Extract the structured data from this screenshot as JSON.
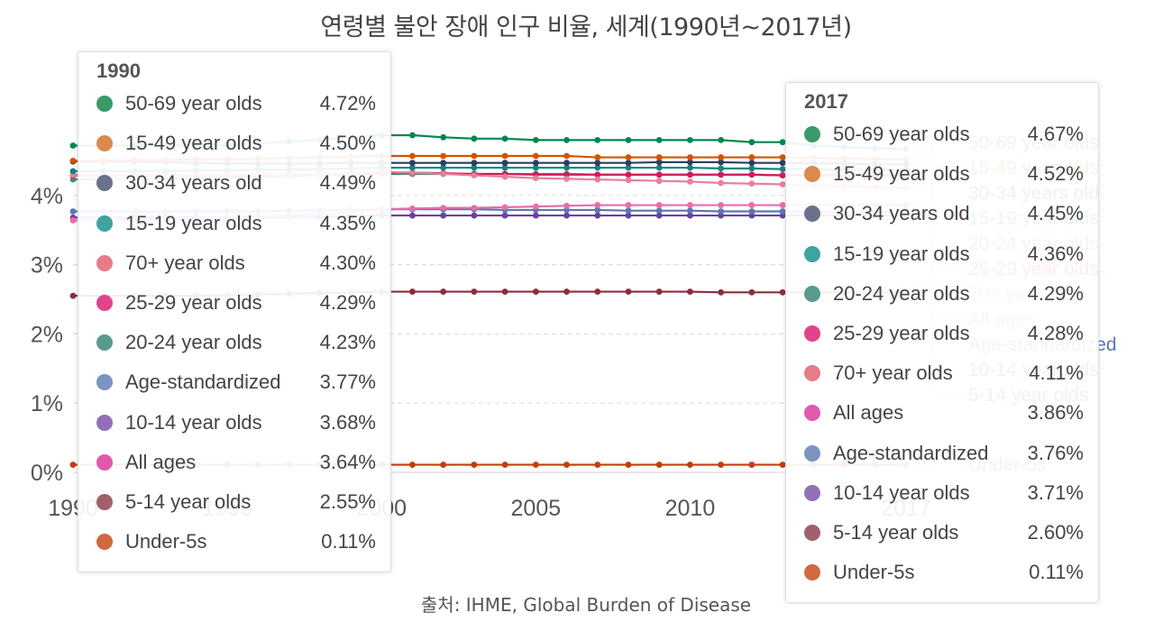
{
  "title": "연령별 불안 장애 인구 비율, 세계(1990년~2017년)",
  "source": "출처: IHME, Global Burden of Disease",
  "chart_data": {
    "type": "line",
    "x": [
      1990,
      1991,
      1992,
      1993,
      1994,
      1995,
      1996,
      1997,
      1998,
      1999,
      2000,
      2001,
      2002,
      2003,
      2004,
      2005,
      2006,
      2007,
      2008,
      2009,
      2010,
      2011,
      2012,
      2013,
      2014,
      2015,
      2016,
      2017
    ],
    "x_ticks": [
      1990,
      1995,
      2000,
      2005,
      2010,
      2017
    ],
    "y_ticks": [
      "0%",
      "1%",
      "2%",
      "3%",
      "4%"
    ],
    "ylim": [
      0,
      5
    ],
    "yunit": "%",
    "series": [
      {
        "name": "50-69 year olds",
        "color": "#00874d",
        "values": [
          4.72,
          4.72,
          4.72,
          4.72,
          4.72,
          4.73,
          4.75,
          4.78,
          4.8,
          4.84,
          4.87,
          4.87,
          4.84,
          4.82,
          4.82,
          4.8,
          4.8,
          4.8,
          4.8,
          4.8,
          4.8,
          4.8,
          4.77,
          4.77,
          4.72,
          4.7,
          4.68,
          4.67
        ]
      },
      {
        "name": "15-49 year olds",
        "color": "#d35400",
        "values": [
          4.5,
          4.5,
          4.51,
          4.51,
          4.52,
          4.52,
          4.53,
          4.54,
          4.55,
          4.56,
          4.57,
          4.57,
          4.57,
          4.57,
          4.57,
          4.57,
          4.57,
          4.55,
          4.55,
          4.55,
          4.55,
          4.55,
          4.55,
          4.55,
          4.54,
          4.53,
          4.53,
          4.52
        ]
      },
      {
        "name": "30-34 years old",
        "color": "#2c3e66",
        "values": [
          4.49,
          4.49,
          4.49,
          4.48,
          4.47,
          4.46,
          4.46,
          4.46,
          4.46,
          4.47,
          4.47,
          4.47,
          4.47,
          4.47,
          4.47,
          4.47,
          4.47,
          4.47,
          4.47,
          4.48,
          4.48,
          4.48,
          4.47,
          4.47,
          4.46,
          4.46,
          4.45,
          4.45
        ]
      },
      {
        "name": "15-19 year olds",
        "color": "#14857f",
        "values": [
          4.35,
          4.35,
          4.35,
          4.35,
          4.36,
          4.36,
          4.37,
          4.37,
          4.38,
          4.39,
          4.4,
          4.4,
          4.4,
          4.4,
          4.4,
          4.4,
          4.4,
          4.4,
          4.4,
          4.4,
          4.4,
          4.39,
          4.39,
          4.38,
          4.38,
          4.37,
          4.37,
          4.36
        ]
      },
      {
        "name": "70+ year olds",
        "color": "#e8809a",
        "values": [
          4.3,
          4.3,
          4.3,
          4.3,
          4.3,
          4.3,
          4.3,
          4.3,
          4.31,
          4.32,
          4.34,
          4.33,
          4.31,
          4.29,
          4.27,
          4.25,
          4.24,
          4.23,
          4.22,
          4.21,
          4.2,
          4.18,
          4.17,
          4.16,
          4.14,
          4.13,
          4.12,
          4.11
        ]
      },
      {
        "name": "25-29 year olds",
        "color": "#d41a5c",
        "values": [
          4.29,
          4.29,
          4.29,
          4.29,
          4.29,
          4.29,
          4.3,
          4.3,
          4.31,
          4.32,
          4.33,
          4.33,
          4.32,
          4.31,
          4.31,
          4.3,
          4.3,
          4.3,
          4.3,
          4.3,
          4.3,
          4.3,
          4.3,
          4.29,
          4.29,
          4.29,
          4.28,
          4.28
        ]
      },
      {
        "name": "20-24 year olds",
        "color": "#4c8a7e",
        "values": [
          4.23,
          4.23,
          4.24,
          4.24,
          4.25,
          4.26,
          4.27,
          4.28,
          4.29,
          4.3,
          4.31,
          4.31,
          4.31,
          4.31,
          4.31,
          4.31,
          4.31,
          4.3,
          4.3,
          4.3,
          4.3,
          4.3,
          4.3,
          4.29,
          4.29,
          4.29,
          4.29,
          4.29
        ]
      },
      {
        "name": "All ages",
        "color": "#e86cab",
        "values": [
          3.64,
          3.64,
          3.65,
          3.66,
          3.67,
          3.68,
          3.69,
          3.71,
          3.73,
          3.76,
          3.8,
          3.81,
          3.82,
          3.82,
          3.83,
          3.84,
          3.85,
          3.86,
          3.86,
          3.86,
          3.86,
          3.86,
          3.86,
          3.86,
          3.86,
          3.86,
          3.86,
          3.86
        ]
      },
      {
        "name": "Age-standardized",
        "color": "#5a79b0",
        "values": [
          3.77,
          3.77,
          3.77,
          3.77,
          3.77,
          3.77,
          3.77,
          3.78,
          3.78,
          3.79,
          3.8,
          3.8,
          3.8,
          3.8,
          3.79,
          3.79,
          3.79,
          3.79,
          3.78,
          3.78,
          3.78,
          3.77,
          3.77,
          3.77,
          3.76,
          3.76,
          3.76,
          3.76
        ]
      },
      {
        "name": "10-14 year olds",
        "color": "#6b3fa0",
        "values": [
          3.68,
          3.68,
          3.68,
          3.68,
          3.68,
          3.68,
          3.68,
          3.69,
          3.69,
          3.7,
          3.71,
          3.71,
          3.71,
          3.71,
          3.71,
          3.71,
          3.71,
          3.71,
          3.71,
          3.71,
          3.71,
          3.71,
          3.71,
          3.71,
          3.71,
          3.71,
          3.71,
          3.71
        ]
      },
      {
        "name": "5-14 year olds",
        "color": "#8b2e3c",
        "values": [
          2.55,
          2.55,
          2.55,
          2.55,
          2.55,
          2.56,
          2.57,
          2.58,
          2.59,
          2.6,
          2.61,
          2.61,
          2.61,
          2.61,
          2.61,
          2.61,
          2.61,
          2.61,
          2.61,
          2.61,
          2.61,
          2.6,
          2.6,
          2.6,
          2.6,
          2.6,
          2.6,
          2.6
        ]
      },
      {
        "name": "Under-5s",
        "color": "#c23d11",
        "values": [
          0.11,
          0.11,
          0.11,
          0.11,
          0.11,
          0.11,
          0.11,
          0.11,
          0.11,
          0.11,
          0.11,
          0.11,
          0.11,
          0.11,
          0.11,
          0.11,
          0.11,
          0.11,
          0.11,
          0.11,
          0.11,
          0.11,
          0.11,
          0.11,
          0.11,
          0.11,
          0.11,
          0.11
        ]
      }
    ]
  },
  "end_labels": [
    {
      "text": "50-69 year olds",
      "color": "#00874d"
    },
    {
      "text": "15-49 year olds",
      "color": "#d35400"
    },
    {
      "text": "30-34 years old",
      "color": "#2c3e66"
    },
    {
      "text": "15-19 year olds",
      "color": "#14857f"
    },
    {
      "text": "20-24 year olds",
      "color": "#4c8a7e"
    },
    {
      "text": "25-29 year olds",
      "color": "#d41a5c"
    },
    {
      "text": "70+ year olds",
      "color": "#e8809a"
    },
    {
      "text": "All ages",
      "color": "#e86cab"
    },
    {
      "text": "Age-standardized",
      "color": "#5a79b0"
    },
    {
      "text": "10-14 year olds",
      "color": "#6b3fa0"
    },
    {
      "text": "5-14 year olds",
      "color": "#8b2e3c"
    },
    {
      "text": "Under-5s",
      "color": "#c23d11"
    }
  ],
  "tooltip_1990": {
    "title": "1990",
    "rows": [
      {
        "name": "50-69 year olds",
        "value": "4.72%",
        "color": "#3a9a6a"
      },
      {
        "name": "15-49 year olds",
        "value": "4.50%",
        "color": "#d98a4f"
      },
      {
        "name": "30-34 years old",
        "value": "4.49%",
        "color": "#6a718a"
      },
      {
        "name": "15-19 year olds",
        "value": "4.35%",
        "color": "#3fa3a0"
      },
      {
        "name": "70+ year olds",
        "value": "4.30%",
        "color": "#e87b88"
      },
      {
        "name": "25-29 year olds",
        "value": "4.29%",
        "color": "#e0448a"
      },
      {
        "name": "20-24 year olds",
        "value": "4.23%",
        "color": "#5a9a8c"
      },
      {
        "name": "Age-standardized",
        "value": "3.77%",
        "color": "#7b94c0"
      },
      {
        "name": "10-14 year olds",
        "value": "3.68%",
        "color": "#9270b5"
      },
      {
        "name": "All ages",
        "value": "3.64%",
        "color": "#e05aac"
      },
      {
        "name": "5-14 year olds",
        "value": "2.55%",
        "color": "#a0606c"
      },
      {
        "name": "Under-5s",
        "value": "0.11%",
        "color": "#cf6a40"
      }
    ]
  },
  "tooltip_2017": {
    "title": "2017",
    "rows": [
      {
        "name": "50-69 year olds",
        "value": "4.67%",
        "color": "#3a9a6a"
      },
      {
        "name": "15-49 year olds",
        "value": "4.52%",
        "color": "#d98a4f"
      },
      {
        "name": "30-34 years old",
        "value": "4.45%",
        "color": "#6a718a"
      },
      {
        "name": "15-19 year olds",
        "value": "4.36%",
        "color": "#3fa3a0"
      },
      {
        "name": "20-24 year olds",
        "value": "4.29%",
        "color": "#5a9a8c"
      },
      {
        "name": "25-29 year olds",
        "value": "4.28%",
        "color": "#e0448a"
      },
      {
        "name": "70+ year olds",
        "value": "4.11%",
        "color": "#e87b88"
      },
      {
        "name": "All ages",
        "value": "3.86%",
        "color": "#e05aac"
      },
      {
        "name": "Age-standardized",
        "value": "3.76%",
        "color": "#7b94c0"
      },
      {
        "name": "10-14 year olds",
        "value": "3.71%",
        "color": "#9270b5"
      },
      {
        "name": "5-14 year olds",
        "value": "2.60%",
        "color": "#a0606c"
      },
      {
        "name": "Under-5s",
        "value": "0.11%",
        "color": "#cf6a40"
      }
    ]
  }
}
